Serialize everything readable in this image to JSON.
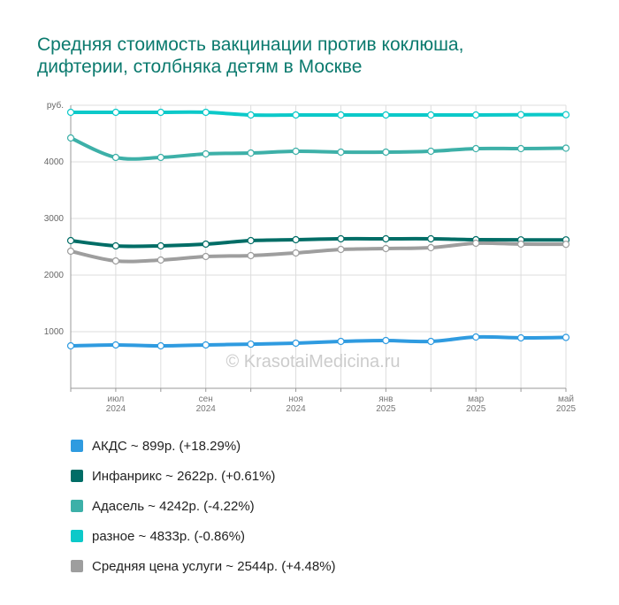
{
  "chart_data": {
    "type": "line",
    "title": "Средняя стоимость вакцинации против коклюша, дифтерии, столбняка детям в Москве",
    "annotation": "© KrasotaiMedicina.ru",
    "categories": [
      null,
      "июл 2024",
      null,
      "сен 2024",
      null,
      "ноя 2024",
      null,
      "янв 2025",
      null,
      "мар 2025",
      null,
      "май 2025"
    ],
    "ylim": [
      0,
      5000
    ],
    "yticks": [
      1000,
      2000,
      3000,
      4000,
      {
        "value": 5000,
        "label": "руб."
      }
    ],
    "grid": true,
    "series": [
      {
        "name": "АКДС ~ 899р. (+18.29%)",
        "color": "#2f9be0",
        "values": [
          750,
          766,
          750,
          766,
          780,
          797,
          828,
          844,
          828,
          906,
          891,
          899
        ]
      },
      {
        "name": "Инфанрикс ~ 2622р. (+0.61%)",
        "color": "#006d66",
        "values": [
          2609,
          2516,
          2516,
          2547,
          2609,
          2625,
          2641,
          2641,
          2641,
          2625,
          2622,
          2622
        ]
      },
      {
        "name": "Адасель ~ 4242р. (-4.22%)",
        "color": "#3db0a8",
        "values": [
          4422,
          4078,
          4078,
          4141,
          4156,
          4188,
          4172,
          4172,
          4188,
          4234,
          4234,
          4242
        ]
      },
      {
        "name": "разное ~ 4833р. (-0.86%)",
        "color": "#0cc9c9",
        "values": [
          4875,
          4875,
          4875,
          4875,
          4828,
          4828,
          4828,
          4828,
          4828,
          4828,
          4833,
          4833
        ]
      },
      {
        "name": "Средняя цена услуги ~ 2544р. (+4.48%)",
        "color": "#9e9e9e",
        "values": [
          2422,
          2250,
          2266,
          2328,
          2344,
          2391,
          2453,
          2469,
          2484,
          2563,
          2547,
          2544
        ]
      }
    ]
  }
}
